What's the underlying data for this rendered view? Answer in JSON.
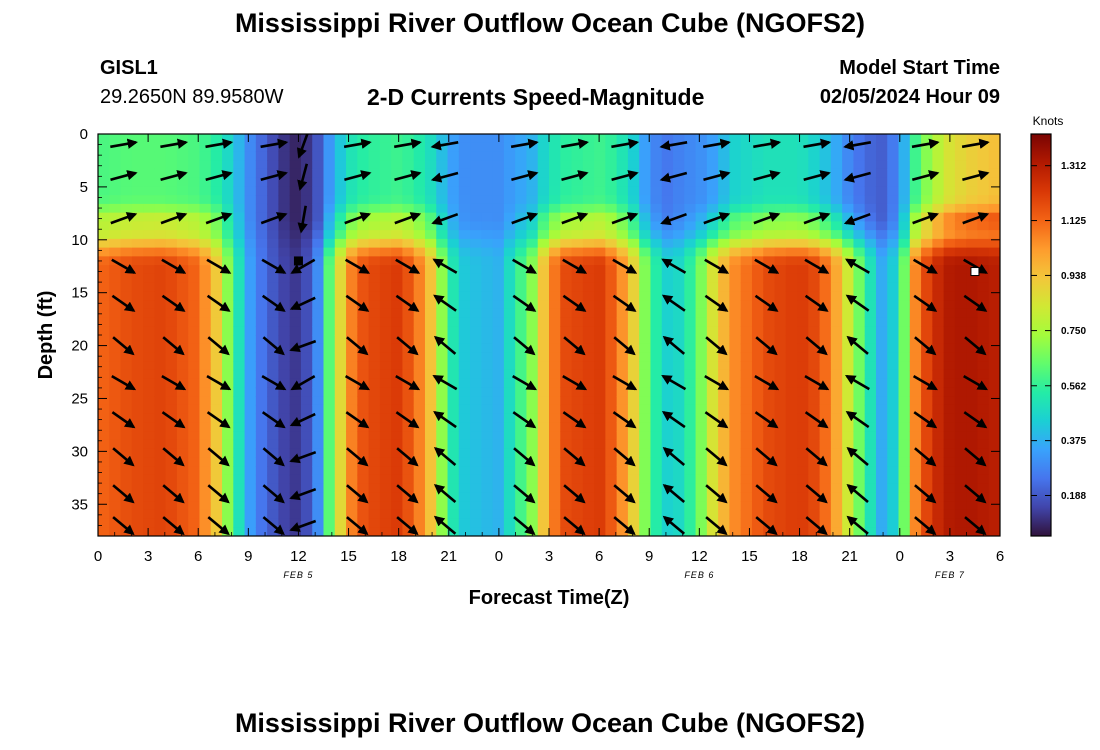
{
  "header": {
    "title": "Mississippi River Outflow Ocean Cube (NGOFS2)",
    "station_id": "GISL1",
    "station_coords": "29.2650N  89.9580W",
    "plot_title": "2-D Currents Speed-Magnitude",
    "model_start_label": "Model Start Time",
    "model_start_value": "02/05/2024 Hour 09"
  },
  "footer": {
    "title": "Mississippi River Outflow Ocean Cube (NGOFS2)"
  },
  "chart_data": {
    "type": "heatmap",
    "xlabel": "Forecast Time(Z)",
    "ylabel": "Depth (ft)",
    "x_tick_labels": [
      "0",
      "3",
      "6",
      "9",
      "12",
      "15",
      "18",
      "21",
      "0",
      "3",
      "6",
      "9",
      "12",
      "15",
      "18",
      "21",
      "0",
      "3",
      "6"
    ],
    "x_ticks_hours": [
      0,
      3,
      6,
      9,
      12,
      15,
      18,
      21,
      24,
      27,
      30,
      33,
      36,
      39,
      42,
      45,
      48,
      51,
      54
    ],
    "x_range_hours": [
      0,
      54
    ],
    "date_labels": [
      {
        "label": "FEB 5",
        "hour": 12
      },
      {
        "label": "FEB 6",
        "hour": 36
      },
      {
        "label": "FEB 7",
        "hour": 51
      }
    ],
    "y_ticks": [
      0,
      5,
      10,
      15,
      20,
      25,
      30,
      35
    ],
    "y_range": [
      0,
      38
    ],
    "y_inverted": true,
    "colorbar": {
      "unit": "Knots",
      "tick_labels": [
        "1.312",
        "1.125",
        "0.938",
        "0.750",
        "0.562",
        "0.375",
        "0.188"
      ],
      "tick_values": [
        1.312,
        1.125,
        0.938,
        0.75,
        0.562,
        0.375,
        0.188
      ],
      "range": [
        0.05,
        1.42
      ],
      "colors": [
        "#30123b",
        "#4145ab",
        "#4675ed",
        "#39a2fc",
        "#1bcfd4",
        "#24eca6",
        "#61fc6c",
        "#a4fc3b",
        "#d1e834",
        "#f3c63a",
        "#fe9b2d",
        "#f36315",
        "#d93806",
        "#b11901",
        "#7a0402"
      ]
    },
    "speed_columns": {
      "hours": [
        0,
        2,
        4,
        6,
        7,
        8,
        9,
        10,
        11,
        12,
        13,
        14,
        15,
        16,
        18,
        19,
        20,
        21,
        22,
        24,
        26,
        27,
        28,
        30,
        31,
        32,
        33,
        34,
        35,
        36,
        37,
        38,
        40,
        42,
        43,
        44,
        45,
        46,
        47,
        48,
        49,
        50,
        51,
        52,
        54
      ],
      "upper_speed": [
        0.6,
        0.62,
        0.62,
        0.6,
        0.55,
        0.45,
        0.3,
        0.2,
        0.12,
        0.08,
        0.15,
        0.35,
        0.5,
        0.55,
        0.58,
        0.55,
        0.48,
        0.35,
        0.3,
        0.3,
        0.38,
        0.5,
        0.55,
        0.58,
        0.55,
        0.45,
        0.3,
        0.25,
        0.28,
        0.3,
        0.35,
        0.45,
        0.5,
        0.5,
        0.45,
        0.38,
        0.28,
        0.22,
        0.2,
        0.3,
        0.6,
        0.75,
        0.85,
        0.9,
        0.95
      ],
      "lower_speed": [
        1.12,
        1.18,
        1.2,
        1.12,
        0.95,
        0.62,
        0.35,
        0.22,
        0.15,
        0.12,
        0.22,
        0.7,
        1.05,
        1.18,
        1.22,
        1.12,
        0.92,
        0.55,
        0.42,
        0.38,
        0.7,
        1.05,
        1.18,
        1.22,
        1.12,
        0.92,
        0.6,
        0.45,
        0.48,
        0.65,
        0.9,
        1.05,
        1.18,
        1.22,
        1.18,
        1.05,
        0.8,
        0.55,
        0.35,
        0.5,
        1.1,
        1.25,
        1.32,
        1.33,
        1.3
      ]
    },
    "vector_columns_hours": [
      1.5,
      4.5,
      7.2,
      10.5,
      12.3,
      15.5,
      18.5,
      20.8,
      25.5,
      28.5,
      31.5,
      34.5,
      37,
      40,
      43,
      45.5,
      49.5,
      52.5
    ],
    "vector_rows_ft": [
      1,
      4,
      8,
      12.5,
      16,
      20,
      23.5,
      27,
      30.5,
      34,
      37
    ],
    "vector_angles_deg": [
      -10,
      -15,
      -20,
      30,
      35,
      40,
      30,
      35,
      40,
      40,
      40
    ],
    "vector_angle_offsets_deg": [
      0,
      0,
      0,
      0,
      120,
      0,
      0,
      180,
      0,
      0,
      0,
      180,
      0,
      0,
      0,
      180,
      0,
      0
    ],
    "markers": [
      {
        "hour": 12,
        "ft": 12
      },
      {
        "hour": 52.5,
        "ft": 13
      }
    ]
  }
}
